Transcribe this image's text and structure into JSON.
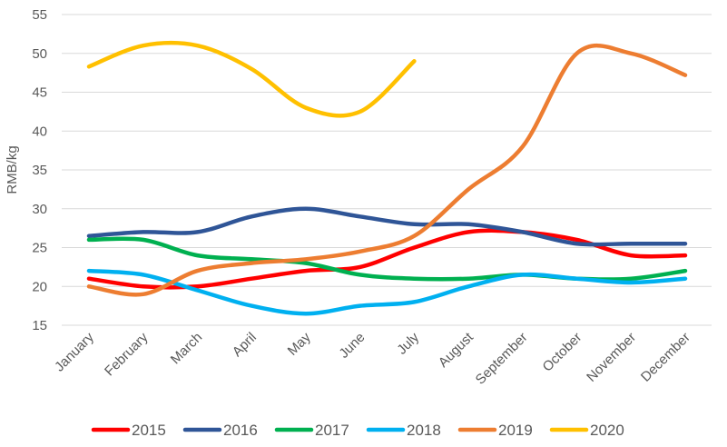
{
  "chart_data": {
    "type": "line",
    "title": "",
    "xlabel": "",
    "ylabel": "RMB/kg",
    "ylim": [
      15,
      55
    ],
    "yticks": [
      15,
      20,
      25,
      30,
      35,
      40,
      45,
      50,
      55
    ],
    "grid": "horizontal",
    "legend_position": "bottom",
    "categories": [
      "January",
      "February",
      "March",
      "April",
      "May",
      "June",
      "July",
      "August",
      "September",
      "October",
      "November",
      "December"
    ],
    "series": [
      {
        "name": "2015",
        "color": "#ff0000",
        "values": [
          21,
          20,
          20,
          21,
          22,
          22.5,
          25,
          27,
          27,
          26,
          24,
          24
        ]
      },
      {
        "name": "2016",
        "color": "#2f5597",
        "values": [
          26.5,
          27,
          27,
          29,
          30,
          29,
          28,
          28,
          27,
          25.5,
          25.5,
          25.5
        ]
      },
      {
        "name": "2017",
        "color": "#00b050",
        "values": [
          26,
          26,
          24,
          23.5,
          23,
          21.5,
          21,
          21,
          21.5,
          21,
          21,
          22
        ]
      },
      {
        "name": "2018",
        "color": "#00b0f0",
        "values": [
          22,
          21.5,
          19.5,
          17.5,
          16.5,
          17.5,
          18,
          20,
          21.5,
          21,
          20.5,
          21
        ]
      },
      {
        "name": "2019",
        "color": "#ed7d31",
        "values": [
          20,
          19,
          22,
          23,
          23.5,
          24.5,
          26.5,
          32.5,
          38,
          50,
          50,
          47.2
        ]
      },
      {
        "name": "2020",
        "color": "#ffc000",
        "values": [
          48.3,
          51,
          51,
          48,
          43,
          42.5,
          49,
          null,
          null,
          null,
          null,
          null
        ]
      }
    ]
  }
}
